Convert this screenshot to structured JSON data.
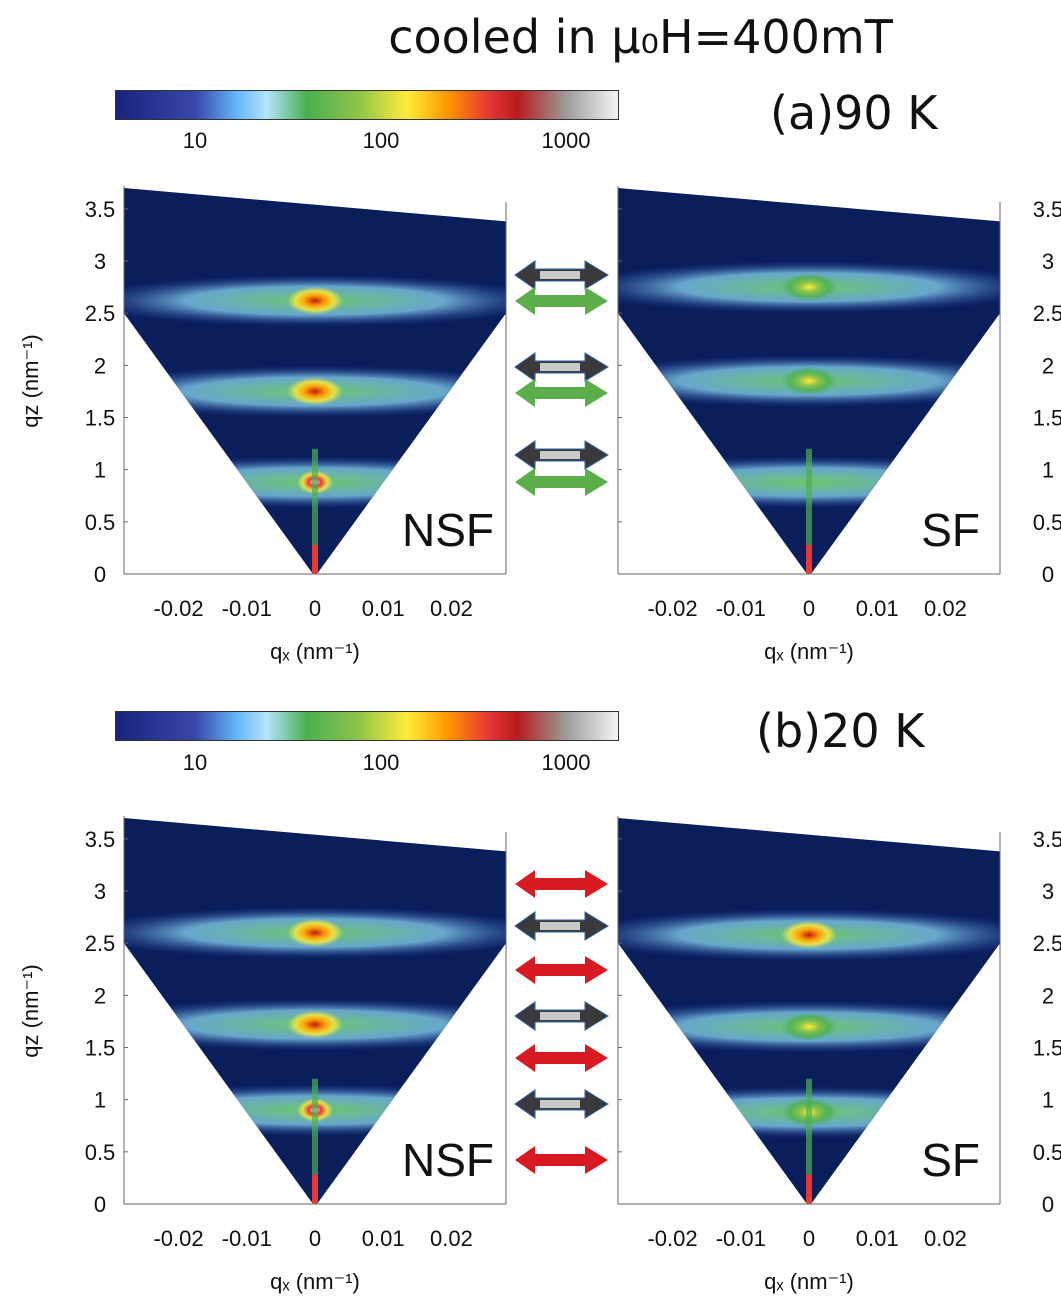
{
  "title": "cooled in μ₀H=400mT",
  "colorbar_ticks": [
    "10",
    "100",
    "1000"
  ],
  "colors": {
    "background": "#0a1e5c",
    "colormap": [
      "#1a237e",
      "#283593",
      "#3949ab",
      "#64b5f6",
      "#b3e5fc",
      "#4caf50",
      "#8bc34a",
      "#ffeb3b",
      "#ff9800",
      "#e53935",
      "#b71c1c",
      "#9e9e9e",
      "#f5f5f5"
    ],
    "arrow_red": "#d81b23",
    "arrow_green": "#5cae4b",
    "arrow_grey": "#3a3a3a"
  },
  "panels": [
    {
      "label": "(a)90 K",
      "left": "NSF",
      "right": "SF"
    },
    {
      "label": "(b)20 K",
      "left": "NSF",
      "right": "SF"
    }
  ],
  "axes": {
    "xlabel": "qₓ (nm⁻¹)",
    "ylabel": "qz (nm⁻¹)",
    "xticks": [
      "-0.02",
      "-0.01",
      "0",
      "0.01",
      "0.02"
    ],
    "yticks": [
      "0",
      "0.5",
      "1",
      "1.5",
      "2",
      "2.5",
      "3",
      "3.5"
    ]
  },
  "chart_data": [
    {
      "type": "heatmap",
      "title": "(a)90 K NSF",
      "xlim": [
        -0.028,
        0.028
      ],
      "ylim": [
        0,
        3.7
      ],
      "grid": false,
      "bands_qz": [
        0.88,
        1.75,
        2.62
      ],
      "peaks": [
        {
          "x": 0,
          "y": 0.88,
          "level": "max"
        },
        {
          "x": 0,
          "y": 1.75,
          "level": "high"
        },
        {
          "x": 0,
          "y": 2.62,
          "level": "high"
        }
      ]
    },
    {
      "type": "heatmap",
      "title": "(a)90 K SF",
      "xlim": [
        -0.028,
        0.028
      ],
      "ylim": [
        0,
        3.7
      ],
      "grid": false,
      "bands_qz": [
        0.88,
        1.85,
        2.75
      ],
      "peaks": [
        {
          "x": 0,
          "y": 1.85,
          "level": "mid"
        },
        {
          "x": 0,
          "y": 2.75,
          "level": "mid"
        }
      ]
    },
    {
      "type": "heatmap",
      "title": "(b)20 K NSF",
      "xlim": [
        -0.028,
        0.028
      ],
      "ylim": [
        0,
        3.7
      ],
      "grid": false,
      "bands_qz": [
        0.9,
        1.72,
        2.6
      ],
      "peaks": [
        {
          "x": 0,
          "y": 0.9,
          "level": "max"
        },
        {
          "x": 0,
          "y": 1.72,
          "level": "high"
        },
        {
          "x": 0,
          "y": 2.6,
          "level": "high"
        }
      ]
    },
    {
      "type": "heatmap",
      "title": "(b)20 K SF",
      "xlim": [
        -0.028,
        0.028
      ],
      "ylim": [
        0,
        3.7
      ],
      "grid": false,
      "bands_qz": [
        0.88,
        1.7,
        2.58
      ],
      "peaks": [
        {
          "x": 0,
          "y": 2.58,
          "level": "high"
        },
        {
          "x": 0,
          "y": 1.7,
          "level": "mid"
        },
        {
          "x": 0,
          "y": 0.88,
          "level": "mid"
        }
      ]
    }
  ]
}
